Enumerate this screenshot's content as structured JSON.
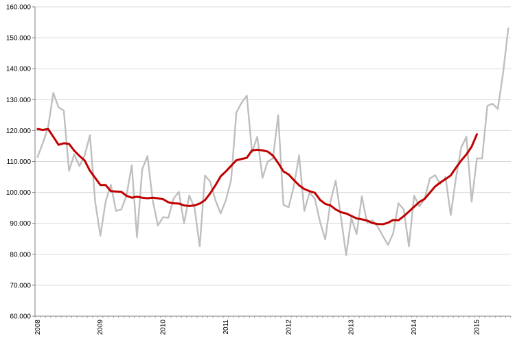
{
  "chart_data": {
    "type": "line",
    "title": "",
    "xlabel": "",
    "ylabel": "",
    "ylim": [
      60000,
      160000
    ],
    "y_ticks": [
      60000,
      70000,
      80000,
      90000,
      100000,
      110000,
      120000,
      130000,
      140000,
      150000,
      160000
    ],
    "y_tick_labels": [
      "60.000",
      "70.000",
      "80.000",
      "90.000",
      "100.000",
      "110.000",
      "120.000",
      "130.000",
      "140.000",
      "150.000",
      "160.000"
    ],
    "x_tick_labels": [
      "2008",
      "2009",
      "2010",
      "2011",
      "2012",
      "2013",
      "2014",
      "2015"
    ],
    "x_range": [
      "2008-01",
      "2015-08"
    ],
    "grid": true,
    "legend": "none",
    "colors": {
      "monthly": "#bfbfbf",
      "trend": "#c00000",
      "grid": "#d9d9d9",
      "axis": "#7f7f7f"
    },
    "series": [
      {
        "key": "monthly",
        "start": "2008-01",
        "values": [
          111500,
          116000,
          121000,
          132200,
          127500,
          126500,
          107000,
          112300,
          108500,
          112000,
          118500,
          97000,
          86000,
          97000,
          102500,
          94000,
          94500,
          99000,
          108800,
          85500,
          107500,
          111800,
          97500,
          89300,
          92000,
          91800,
          98000,
          100200,
          90000,
          99000,
          95000,
          82600,
          105500,
          103500,
          97500,
          93200,
          97500,
          104000,
          125800,
          129000,
          131300,
          113000,
          118000,
          104700,
          110000,
          111000,
          125000,
          96000,
          95200,
          102000,
          112000,
          94000,
          100000,
          98000,
          90500,
          84800,
          97000,
          103800,
          92000,
          79700,
          91800,
          86500,
          98700,
          90200,
          91000,
          89000,
          86000,
          83000,
          86800,
          96500,
          94500,
          82600,
          99000,
          95500,
          97800,
          104500,
          105600,
          102700,
          105000,
          92700,
          104700,
          114500,
          118000,
          97000,
          111000,
          111000,
          128000,
          128700,
          127000,
          138500,
          153000
        ]
      },
      {
        "key": "trend",
        "start": "2008-01",
        "values": [
          120500,
          120200,
          120500,
          118000,
          115400,
          115900,
          115700,
          113500,
          111800,
          110300,
          107000,
          104700,
          102400,
          102400,
          100400,
          100300,
          100200,
          98900,
          98300,
          98600,
          98300,
          98100,
          98300,
          98100,
          97800,
          96800,
          96500,
          96400,
          95800,
          95600,
          95800,
          96400,
          97500,
          99700,
          102300,
          105200,
          106800,
          108600,
          110400,
          110800,
          111200,
          113600,
          113800,
          113600,
          113200,
          111900,
          109500,
          106800,
          105800,
          104000,
          102300,
          101100,
          100400,
          99900,
          97600,
          96300,
          95800,
          94500,
          93600,
          93200,
          92400,
          91600,
          91300,
          90900,
          90100,
          89800,
          89700,
          90200,
          91100,
          91000,
          92300,
          93800,
          95400,
          96900,
          97900,
          99900,
          101900,
          103200,
          104300,
          105500,
          108000,
          110300,
          112300,
          114800,
          118800
        ]
      }
    ]
  }
}
